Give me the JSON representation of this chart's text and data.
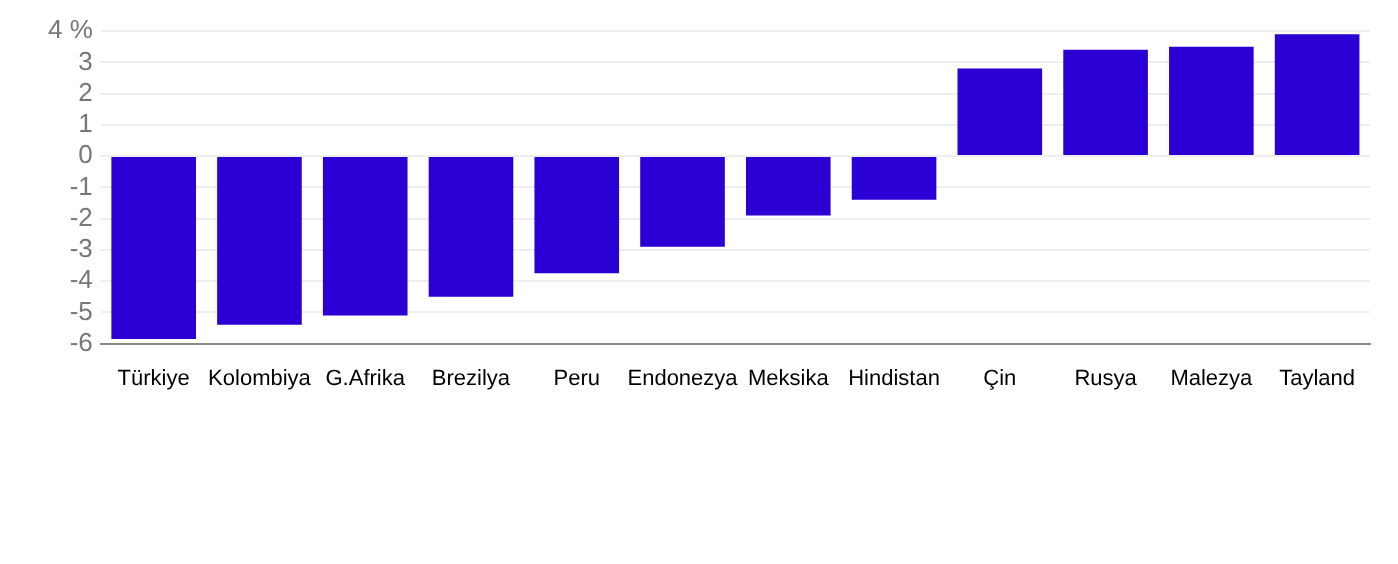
{
  "chart_data": {
    "type": "bar",
    "categories": [
      "Türkiye",
      "Kolombiya",
      "G.Afrika",
      "Brezilya",
      "Peru",
      "Endonezya",
      "Meksika",
      "Hindistan",
      "Çin",
      "Rusya",
      "Malezya",
      "Tayland"
    ],
    "values": [
      -5.85,
      -5.4,
      -5.1,
      -4.5,
      -3.75,
      -2.9,
      -1.9,
      -1.4,
      2.8,
      3.4,
      3.5,
      3.9
    ],
    "color": "#2a00d4",
    "ylim": [
      -6,
      4.1
    ],
    "yticks": [
      -6,
      -5,
      -4,
      -3,
      -2,
      -1,
      0,
      1,
      2,
      3,
      {
        "value": 4,
        "label": "4 %"
      }
    ],
    "grid": "y"
  }
}
